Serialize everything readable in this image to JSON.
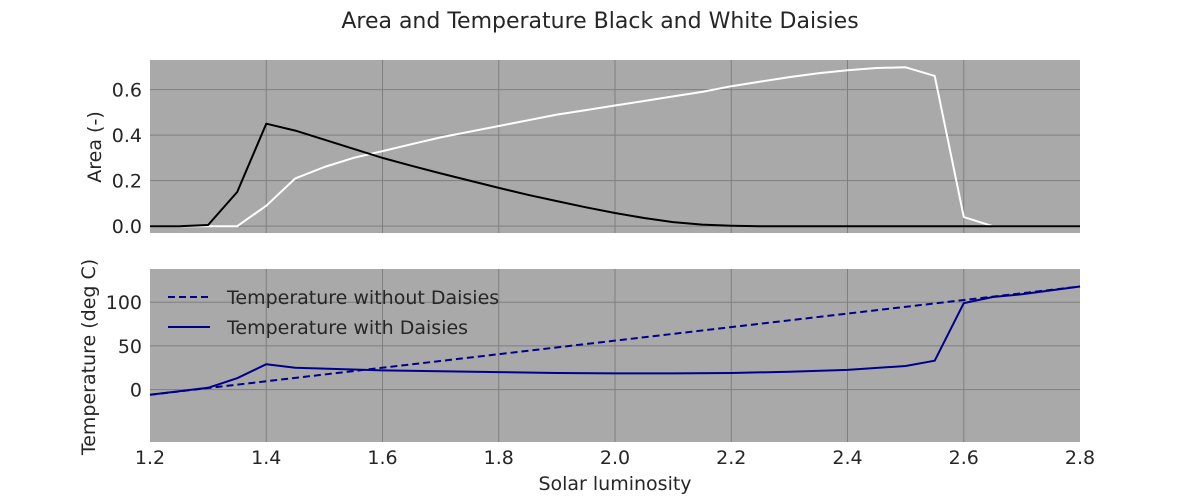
{
  "chart_data": {
    "type": "line",
    "title": "Area and Temperature Black and White Daisies",
    "xlabel": "Solar luminosity",
    "xlim": [
      1.2,
      2.8
    ],
    "xticks": [
      "1.2",
      "1.4",
      "1.6",
      "1.8",
      "2.0",
      "2.2",
      "2.4",
      "2.6",
      "2.8"
    ],
    "grid": true,
    "panels": [
      {
        "ylabel": "Area (-)",
        "ylim": [
          -0.03,
          0.73
        ],
        "yticks": [
          {
            "value": 0.0,
            "label": "0.0"
          },
          {
            "value": 0.2,
            "label": "0.2"
          },
          {
            "value": 0.4,
            "label": "0.4"
          },
          {
            "value": 0.6,
            "label": "0.6"
          }
        ],
        "series": [
          {
            "color": "#ffffff",
            "dash": "solid",
            "x": [
              1.2,
              1.25,
              1.3,
              1.35,
              1.4,
              1.45,
              1.5,
              1.55,
              1.6,
              1.65,
              1.7,
              1.75,
              1.8,
              1.85,
              1.9,
              1.95,
              2.0,
              2.05,
              2.1,
              2.15,
              2.2,
              2.25,
              2.3,
              2.35,
              2.4,
              2.45,
              2.5,
              2.55,
              2.6,
              2.65,
              2.7,
              2.75,
              2.8
            ],
            "y": [
              0.0,
              0.0,
              0.0,
              0.0,
              0.09,
              0.21,
              0.26,
              0.3,
              0.33,
              0.36,
              0.39,
              0.415,
              0.44,
              0.465,
              0.49,
              0.51,
              0.53,
              0.55,
              0.57,
              0.59,
              0.615,
              0.635,
              0.655,
              0.672,
              0.685,
              0.695,
              0.698,
              0.66,
              0.04,
              0.0,
              0.0,
              0.0,
              0.0
            ]
          },
          {
            "color": "#000000",
            "dash": "solid",
            "x": [
              1.2,
              1.25,
              1.3,
              1.35,
              1.4,
              1.45,
              1.5,
              1.55,
              1.6,
              1.65,
              1.7,
              1.75,
              1.8,
              1.85,
              1.9,
              1.95,
              2.0,
              2.05,
              2.1,
              2.15,
              2.2,
              2.25,
              2.3,
              2.35,
              2.4,
              2.45,
              2.5,
              2.55,
              2.6,
              2.65,
              2.7,
              2.75,
              2.8
            ],
            "y": [
              0.0,
              0.0,
              0.005,
              0.15,
              0.45,
              0.42,
              0.38,
              0.34,
              0.3,
              0.265,
              0.232,
              0.2,
              0.168,
              0.138,
              0.11,
              0.083,
              0.058,
              0.036,
              0.018,
              0.007,
              0.002,
              0.0,
              0.0,
              0.0,
              0.0,
              0.0,
              0.0,
              0.0,
              0.0,
              0.0,
              0.0,
              0.0,
              0.0
            ]
          }
        ]
      },
      {
        "ylabel": "Temperature (deg C)",
        "ylim": [
          -60,
          138
        ],
        "yticks": [
          {
            "value": 0,
            "label": "0"
          },
          {
            "value": 50,
            "label": "50"
          },
          {
            "value": 100,
            "label": "100"
          }
        ],
        "legend_position": "upper-left",
        "series": [
          {
            "name": "Temperature without Daisies",
            "color": "#00008b",
            "dash": "dashed",
            "x": [
              1.2,
              2.8
            ],
            "y": [
              -6,
              118
            ]
          },
          {
            "name": "Temperature with Daisies",
            "color": "#00008b",
            "dash": "solid",
            "x": [
              1.2,
              1.3,
              1.35,
              1.4,
              1.45,
              1.5,
              1.6,
              1.7,
              1.8,
              1.9,
              2.0,
              2.1,
              2.2,
              2.3,
              2.4,
              2.5,
              2.55,
              2.6,
              2.65,
              2.7,
              2.8
            ],
            "y": [
              -6,
              2,
              13,
              29,
              25,
              24,
              22,
              21,
              20,
              19,
              18.5,
              18.5,
              19,
              20.5,
              22.5,
              27,
              33,
              99,
              106,
              109,
              118
            ]
          }
        ]
      }
    ]
  }
}
